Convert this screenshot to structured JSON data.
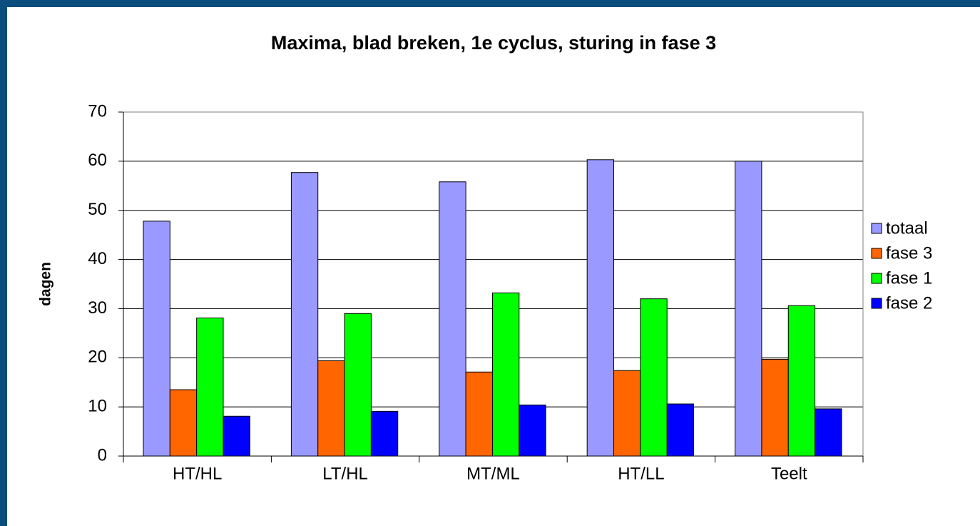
{
  "chart_data": {
    "type": "bar",
    "title": "Maxima, blad breken, 1e cyclus, sturing in fase 3",
    "y_label": "dagen",
    "categories": [
      "HT/HL",
      "LT/HL",
      "MT/ML",
      "HT/LL",
      "Teelt"
    ],
    "series": [
      {
        "name": "totaal",
        "color": "#9999ff",
        "values": [
          47.8,
          57.7,
          55.8,
          60.3,
          60.0
        ]
      },
      {
        "name": "fase 3",
        "color": "#ff6600",
        "values": [
          13.5,
          19.4,
          17.1,
          17.4,
          19.7
        ]
      },
      {
        "name": "fase 1",
        "color": "#00ff00",
        "values": [
          28.1,
          29.0,
          33.2,
          32.0,
          30.6
        ]
      },
      {
        "name": "fase 2",
        "color": "#0000ff",
        "values": [
          8.1,
          9.1,
          10.4,
          10.6,
          9.6
        ]
      }
    ],
    "ylim": [
      0,
      70
    ],
    "yticks": [
      0,
      10,
      20,
      30,
      40,
      50,
      60,
      70
    ],
    "grid": true,
    "legend": "right"
  }
}
